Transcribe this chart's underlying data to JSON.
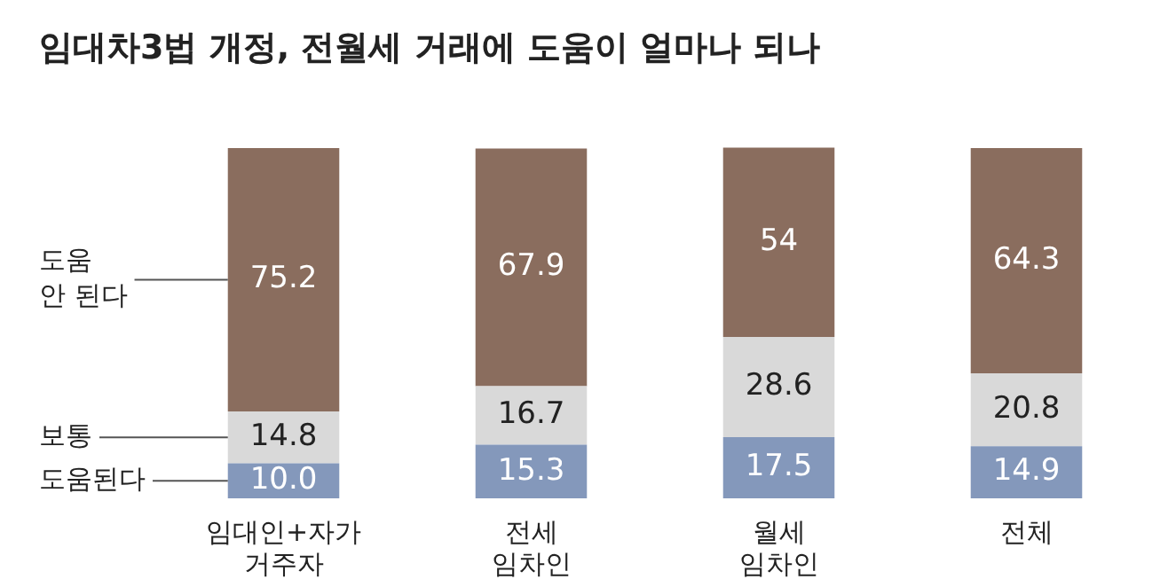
{
  "chart_data": {
    "type": "bar",
    "stacked": true,
    "title": "임대차3법 개정, 전월세 거래에 도움이 얼마나 되나",
    "categories": [
      "임대인+자가\n거주자",
      "전세\n임차인",
      "월세\n임차인",
      "전체"
    ],
    "series": [
      {
        "name": "도움된다",
        "color": "#8498bb",
        "values": [
          10.0,
          15.3,
          17.5,
          14.9
        ],
        "value_labels": [
          "10.0",
          "15.3",
          "17.5",
          "14.9"
        ]
      },
      {
        "name": "보통",
        "color": "#d9d9d9",
        "values": [
          14.8,
          16.7,
          28.6,
          20.8
        ],
        "value_labels": [
          "14.8",
          "16.7",
          "28.6",
          "20.8"
        ]
      },
      {
        "name": "도움\n안 된다",
        "color": "#8a6d5e",
        "values": [
          75.2,
          67.9,
          54,
          64.3
        ],
        "value_labels": [
          "75.2",
          "67.9",
          "54",
          "64.3"
        ]
      }
    ],
    "legend": false,
    "grid": false
  }
}
